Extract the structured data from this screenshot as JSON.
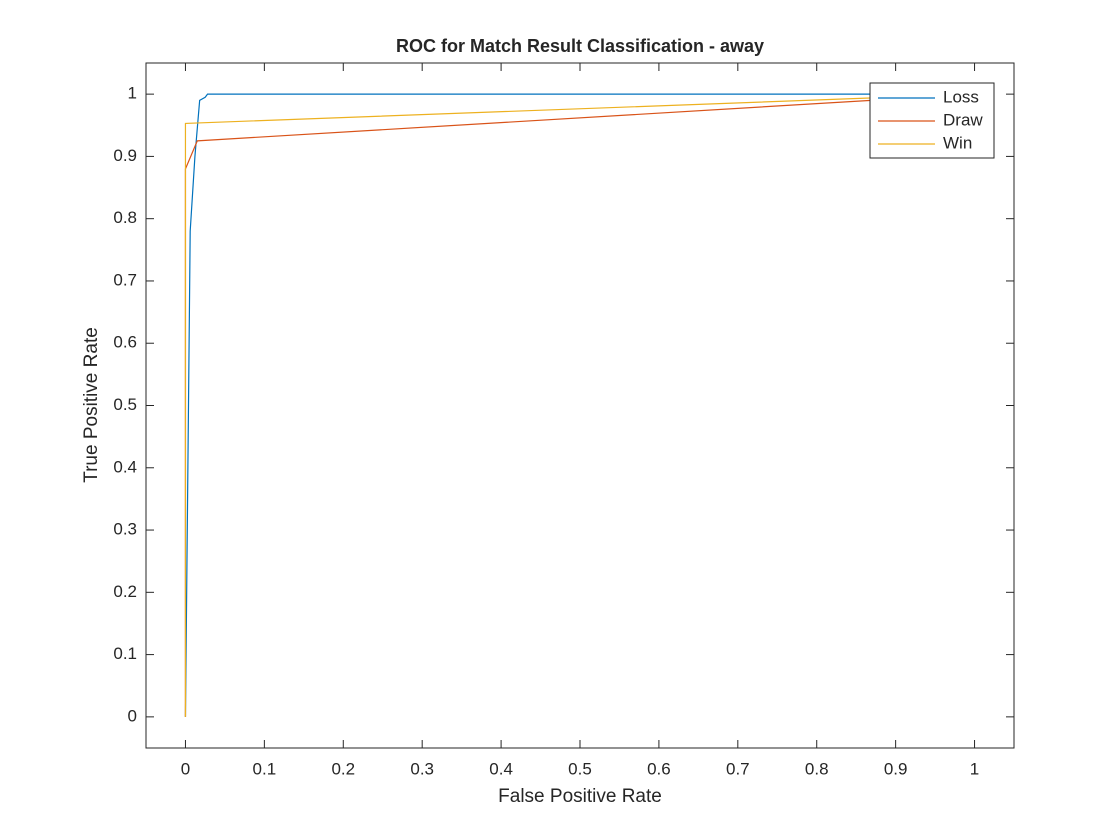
{
  "chart_data": {
    "type": "line",
    "title": "ROC for Match Result Classification - away",
    "xlabel": "False Positive Rate",
    "ylabel": "True Positive Rate",
    "xlim": [
      -0.05,
      1.05
    ],
    "ylim": [
      -0.05,
      1.05
    ],
    "xticks": [
      0,
      0.1,
      0.2,
      0.3,
      0.4,
      0.5,
      0.6,
      0.7,
      0.8,
      0.9,
      1
    ],
    "yticks": [
      0,
      0.1,
      0.2,
      0.3,
      0.4,
      0.5,
      0.6,
      0.7,
      0.8,
      0.9,
      1
    ],
    "grid": false,
    "legend": "upper right",
    "series": [
      {
        "name": "Loss",
        "color": "#0072BD",
        "x": [
          0,
          0.006,
          0.012,
          0.018,
          0.025,
          0.028,
          1
        ],
        "values": [
          0,
          0.78,
          0.9,
          0.99,
          0.995,
          1,
          1
        ]
      },
      {
        "name": "Draw",
        "color": "#D95319",
        "x": [
          0,
          0,
          0.015,
          1
        ],
        "values": [
          0,
          0.88,
          0.925,
          1
        ]
      },
      {
        "name": "Win",
        "color": "#EDB120",
        "x": [
          0,
          0,
          1
        ],
        "values": [
          0,
          0.953,
          1
        ]
      }
    ]
  }
}
